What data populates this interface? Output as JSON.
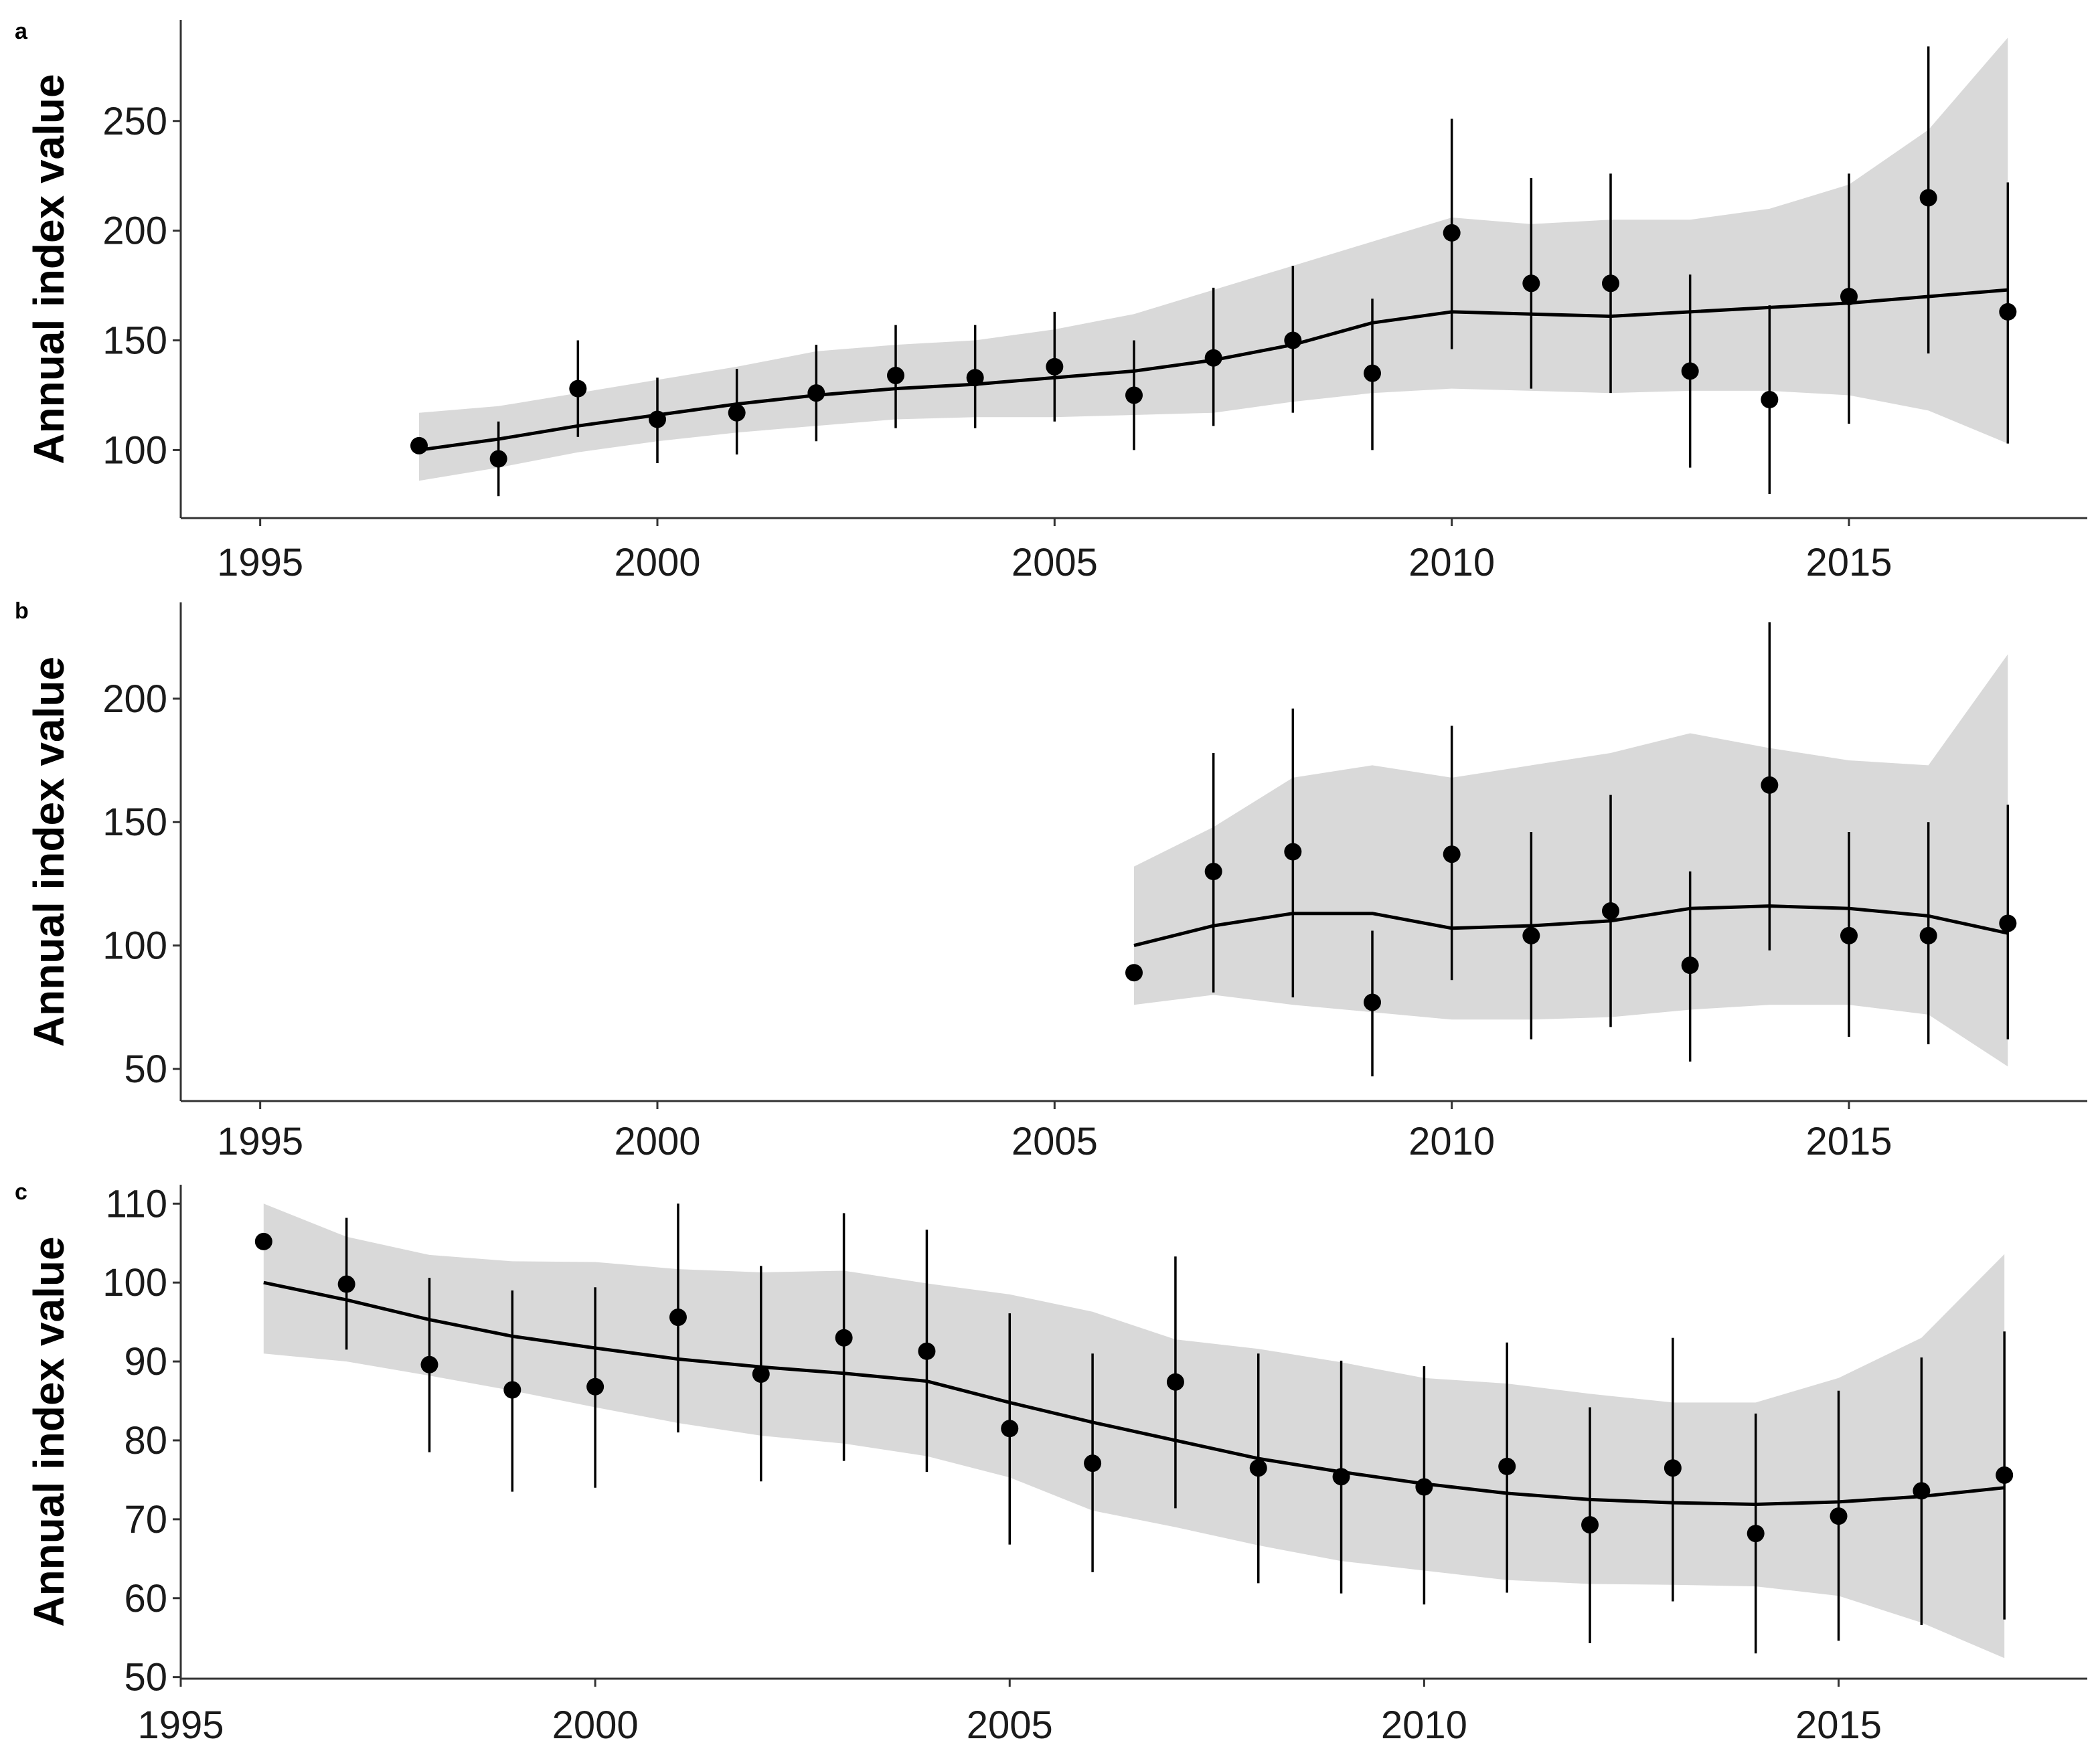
{
  "colors": {
    "ribbon": "#d9d9d9",
    "ink": "#000000",
    "axis": "#333333"
  },
  "x_tick_labels": [
    "1995",
    "2000",
    "2005",
    "2010",
    "2015"
  ],
  "chart_data": [
    {
      "type": "scatter",
      "panel": "a",
      "ylabel": "Annual index value",
      "xlim": [
        1994.0,
        2018.0
      ],
      "ylim": [
        69,
        296
      ],
      "x_ticks": [
        1995,
        2000,
        2005,
        2010,
        2015
      ],
      "y_ticks": [
        100,
        150,
        200,
        250
      ],
      "y_tick_labels": [
        "100",
        "150",
        "200",
        "250"
      ],
      "series": [
        {
          "name": "annual index",
          "x": [
            1997,
            1998,
            1999,
            2000,
            2001,
            2002,
            2003,
            2004,
            2005,
            2006,
            2007,
            2008,
            2009,
            2010,
            2011,
            2012,
            2013,
            2014,
            2015,
            2016,
            2017
          ],
          "y": [
            102,
            96,
            128,
            114,
            117,
            126,
            134,
            133,
            138,
            125,
            142,
            150,
            135,
            199,
            176,
            176,
            136,
            123,
            170,
            215,
            163
          ],
          "err_low": [
            102,
            79,
            106,
            94,
            98,
            104,
            110,
            110,
            113,
            100,
            111,
            117,
            100,
            146,
            128,
            126,
            92,
            80,
            112,
            144,
            103
          ],
          "err_high": [
            102,
            113,
            150,
            133,
            137,
            148,
            157,
            157,
            163,
            150,
            174,
            184,
            169,
            251,
            224,
            226,
            180,
            166,
            226,
            284,
            222
          ]
        },
        {
          "name": "smoothed trend",
          "x": [
            1997,
            1998,
            1999,
            2000,
            2001,
            2002,
            2003,
            2004,
            2005,
            2006,
            2007,
            2008,
            2009,
            2010,
            2011,
            2012,
            2013,
            2014,
            2015,
            2016,
            2017
          ],
          "y": [
            100,
            105,
            111,
            116,
            121,
            125,
            128,
            130,
            133,
            136,
            141,
            148,
            158,
            163,
            162,
            161,
            163,
            165,
            167,
            170,
            173
          ],
          "ci_low": [
            86,
            92,
            99,
            104,
            108,
            111,
            114,
            115,
            115,
            116,
            117,
            122,
            126,
            128,
            127,
            126,
            127,
            127,
            125,
            118,
            103
          ],
          "ci_high": [
            117,
            120,
            126,
            132,
            138,
            145,
            148,
            150,
            155,
            162,
            173,
            184,
            195,
            206,
            203,
            205,
            205,
            210,
            221,
            246,
            288
          ]
        }
      ]
    },
    {
      "type": "scatter",
      "panel": "b",
      "ylabel": "Annual index value",
      "xlim": [
        1994.0,
        2018.0
      ],
      "ylim": [
        37,
        239
      ],
      "x_ticks": [
        1995,
        2000,
        2005,
        2010,
        2015
      ],
      "y_ticks": [
        50,
        100,
        150,
        200
      ],
      "y_tick_labels": [
        "50",
        "100",
        "150",
        "200"
      ],
      "series": [
        {
          "name": "annual index",
          "x": [
            2006,
            2007,
            2008,
            2009,
            2010,
            2011,
            2012,
            2013,
            2014,
            2015,
            2016,
            2017
          ],
          "y": [
            89,
            130,
            138,
            77,
            137,
            104,
            114,
            92,
            165,
            104,
            104,
            109
          ],
          "err_low": [
            89,
            81,
            79,
            47,
            86,
            62,
            67,
            53,
            98,
            63,
            60,
            62
          ],
          "err_high": [
            89,
            178,
            196,
            106,
            189,
            146,
            161,
            130,
            231,
            146,
            150,
            157
          ]
        },
        {
          "name": "smoothed trend",
          "x": [
            2006,
            2007,
            2008,
            2009,
            2010,
            2011,
            2012,
            2013,
            2014,
            2015,
            2016,
            2017
          ],
          "y": [
            100,
            108,
            113,
            113,
            107,
            108,
            110,
            115,
            116,
            115,
            112,
            105
          ],
          "ci_low": [
            76,
            80,
            76,
            73,
            70,
            70,
            71,
            74,
            76,
            76,
            72,
            51
          ],
          "ci_high": [
            132,
            148,
            168,
            173,
            168,
            173,
            178,
            186,
            180,
            175,
            173,
            218
          ]
        }
      ]
    },
    {
      "type": "scatter",
      "panel": "c",
      "ylabel": "Annual index value",
      "xlim": [
        1995.0,
        2018.0
      ],
      "ylim": [
        49.8,
        112.4
      ],
      "x_ticks": [
        1995,
        2000,
        2005,
        2010,
        2015
      ],
      "y_ticks": [
        50,
        60,
        70,
        80,
        90,
        100,
        110
      ],
      "y_tick_labels": [
        "50",
        "60",
        "70",
        "80",
        "90",
        "100",
        "110"
      ],
      "series": [
        {
          "name": "annual index",
          "x": [
            1996,
            1997,
            1998,
            1999,
            2000,
            2001,
            2002,
            2003,
            2004,
            2005,
            2006,
            2007,
            2008,
            2009,
            2010,
            2011,
            2012,
            2013,
            2014,
            2015,
            2016,
            2017
          ],
          "y": [
            105.2,
            99.8,
            89.6,
            86.4,
            86.8,
            95.6,
            88.4,
            93.0,
            91.3,
            81.5,
            77.1,
            87.4,
            76.5,
            75.4,
            74.1,
            76.7,
            69.3,
            76.5,
            68.2,
            70.4,
            73.6,
            75.6
          ],
          "err_low": [
            105.2,
            91.5,
            78.5,
            73.5,
            74.0,
            81.0,
            74.8,
            77.4,
            76.0,
            66.8,
            63.3,
            71.4,
            61.9,
            60.6,
            59.2,
            60.7,
            54.3,
            59.6,
            53.0,
            54.6,
            56.6,
            57.3
          ],
          "err_high": [
            105.2,
            108.2,
            100.6,
            99.0,
            99.4,
            110.0,
            102.1,
            108.8,
            106.7,
            96.1,
            91.0,
            103.3,
            91.0,
            90.1,
            89.4,
            92.4,
            84.2,
            93.0,
            83.4,
            86.3,
            90.5,
            93.8
          ]
        },
        {
          "name": "smoothed trend",
          "x": [
            1996,
            1997,
            1998,
            1999,
            2000,
            2001,
            2002,
            2003,
            2004,
            2005,
            2006,
            2007,
            2008,
            2009,
            2010,
            2011,
            2012,
            2013,
            2014,
            2015,
            2016,
            2017
          ],
          "y": [
            100.0,
            97.8,
            95.3,
            93.2,
            91.7,
            90.3,
            89.3,
            88.5,
            87.5,
            84.8,
            82.3,
            80.0,
            77.7,
            76.0,
            74.5,
            73.3,
            72.5,
            72.1,
            71.9,
            72.2,
            72.9,
            74.0
          ],
          "ci_low": [
            91.0,
            90.0,
            88.2,
            86.3,
            84.2,
            82.2,
            80.6,
            79.6,
            78.0,
            75.3,
            71.1,
            69.0,
            66.7,
            64.7,
            63.5,
            62.3,
            61.8,
            61.7,
            61.5,
            60.3,
            56.9,
            52.4
          ],
          "ci_high": [
            110.0,
            105.8,
            103.5,
            102.7,
            102.6,
            101.7,
            101.3,
            101.5,
            99.9,
            98.5,
            96.3,
            92.8,
            91.6,
            89.9,
            87.9,
            87.2,
            85.9,
            84.8,
            84.8,
            87.9,
            93.0,
            103.6
          ]
        }
      ]
    }
  ]
}
